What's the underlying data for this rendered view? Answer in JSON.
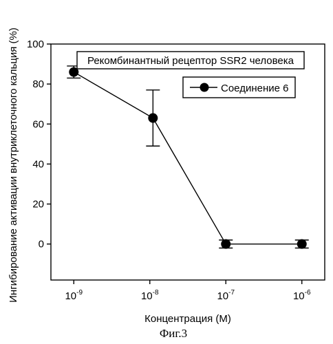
{
  "chart_data": {
    "type": "line",
    "title": "Рекомбинантный рецептор SSR2 человека",
    "xlabel": "Концентрация (М)",
    "ylabel": "Ингибирование активации внутриклеточного кальция (%)",
    "x_scale": "log",
    "xlim": [
      5e-10,
      2e-06
    ],
    "ylim": [
      -18,
      100
    ],
    "x_tick_base": "10",
    "x_ticks": [
      {
        "value": 1e-09,
        "exponent": "-9"
      },
      {
        "value": 1e-08,
        "exponent": "-8"
      },
      {
        "value": 1e-07,
        "exponent": "-7"
      },
      {
        "value": 1e-06,
        "exponent": "-6"
      }
    ],
    "y_ticks": [
      0,
      20,
      40,
      60,
      80,
      100
    ],
    "grid": false,
    "legend_position": "top-center",
    "series": [
      {
        "name": "Соединение 6",
        "color": "#000000",
        "points": [
          {
            "x": 1e-09,
            "y": 86,
            "err_low": 83,
            "err_high": 89
          },
          {
            "x": 1.1e-08,
            "y": 63,
            "err_low": 49,
            "err_high": 77
          },
          {
            "x": 1e-07,
            "y": 0,
            "err_low": -2,
            "err_high": 2
          },
          {
            "x": 1e-06,
            "y": 0,
            "err_low": -2,
            "err_high": 2
          }
        ]
      }
    ]
  },
  "caption": "Фиг.3"
}
